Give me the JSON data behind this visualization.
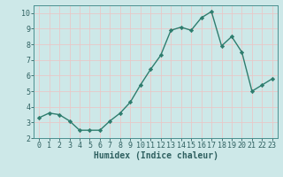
{
  "x": [
    0,
    1,
    2,
    3,
    4,
    5,
    6,
    7,
    8,
    9,
    10,
    11,
    12,
    13,
    14,
    15,
    16,
    17,
    18,
    19,
    20,
    21,
    22,
    23
  ],
  "y": [
    3.3,
    3.6,
    3.5,
    3.1,
    2.5,
    2.5,
    2.5,
    3.1,
    3.6,
    4.3,
    5.4,
    6.4,
    7.3,
    8.9,
    9.1,
    8.9,
    9.7,
    10.1,
    7.9,
    8.5,
    7.5,
    5.0,
    5.4,
    5.8
  ],
  "line_color": "#2e7d6e",
  "marker": "D",
  "markersize": 2.2,
  "linewidth": 1.0,
  "xlabel": "Humidex (Indice chaleur)",
  "xlim": [
    -0.5,
    23.5
  ],
  "ylim": [
    2,
    10.5
  ],
  "yticks": [
    2,
    3,
    4,
    5,
    6,
    7,
    8,
    9,
    10
  ],
  "xticks": [
    0,
    1,
    2,
    3,
    4,
    5,
    6,
    7,
    8,
    9,
    10,
    11,
    12,
    13,
    14,
    15,
    16,
    17,
    18,
    19,
    20,
    21,
    22,
    23
  ],
  "bg_color": "#cde8e8",
  "grid_color": "#e8c8c8",
  "axes_color": "#4a9090",
  "tick_color": "#2e6060",
  "label_color": "#2e6060",
  "tick_fontsize": 6.0,
  "xlabel_fontsize": 7.0
}
